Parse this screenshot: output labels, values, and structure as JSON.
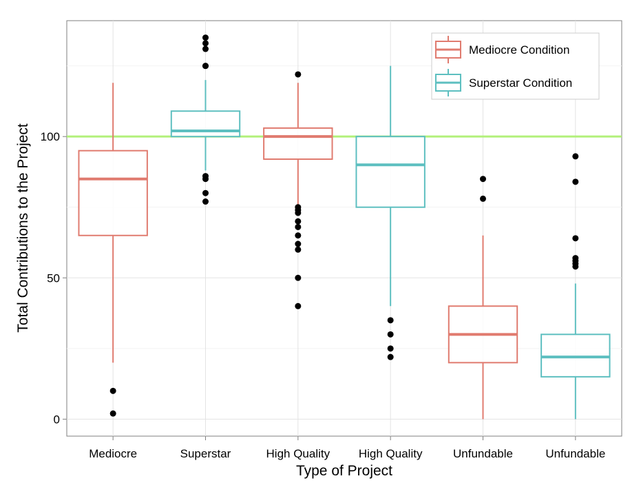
{
  "chart_data": {
    "type": "boxplot",
    "xlabel": "Type of Project",
    "ylabel": "Total Contributions to the Project",
    "ylim": [
      -6,
      141
    ],
    "yticks": [
      0,
      50,
      100
    ],
    "grid": true,
    "reference_line": {
      "y": 100,
      "color": "#b2f07a"
    },
    "legend": {
      "placement": "top-right",
      "entries": [
        {
          "label": "Mediocre Condition",
          "color": "#e07b6f"
        },
        {
          "label": "Superstar Condition",
          "color": "#5dbfc0"
        }
      ]
    },
    "categories": [
      "Mediocre",
      "Superstar",
      "High Quality",
      "High Quality",
      "Unfundable",
      "Unfundable"
    ],
    "boxes": [
      {
        "category": "Mediocre",
        "series": "Mediocre Condition",
        "whisker_low": 20,
        "q1": 65,
        "median": 85,
        "q3": 95,
        "whisker_high": 119,
        "outliers": [
          2,
          10
        ]
      },
      {
        "category": "Superstar",
        "series": "Superstar Condition",
        "whisker_low": 88,
        "q1": 100,
        "median": 102,
        "q3": 109,
        "whisker_high": 120,
        "outliers": [
          77,
          80,
          85,
          86,
          125,
          125,
          131,
          133,
          135
        ]
      },
      {
        "category": "High Quality",
        "series": "Mediocre Condition",
        "whisker_low": 76,
        "q1": 92,
        "median": 100,
        "q3": 103,
        "whisker_high": 119,
        "outliers": [
          40,
          50,
          60,
          62,
          65,
          68,
          70,
          73,
          74,
          75,
          122
        ]
      },
      {
        "category": "High Quality",
        "series": "Superstar Condition",
        "whisker_low": 40,
        "q1": 75,
        "median": 90,
        "q3": 100,
        "whisker_high": 125,
        "outliers": [
          22,
          25,
          30,
          35
        ]
      },
      {
        "category": "Unfundable",
        "series": "Mediocre Condition",
        "whisker_low": 0,
        "q1": 20,
        "median": 30,
        "q3": 40,
        "whisker_high": 65,
        "outliers": [
          78,
          85
        ]
      },
      {
        "category": "Unfundable",
        "series": "Superstar Condition",
        "whisker_low": 0,
        "q1": 15,
        "median": 22,
        "q3": 30,
        "whisker_high": 48,
        "outliers": [
          54,
          55,
          56,
          57,
          64,
          84,
          93
        ]
      }
    ]
  }
}
